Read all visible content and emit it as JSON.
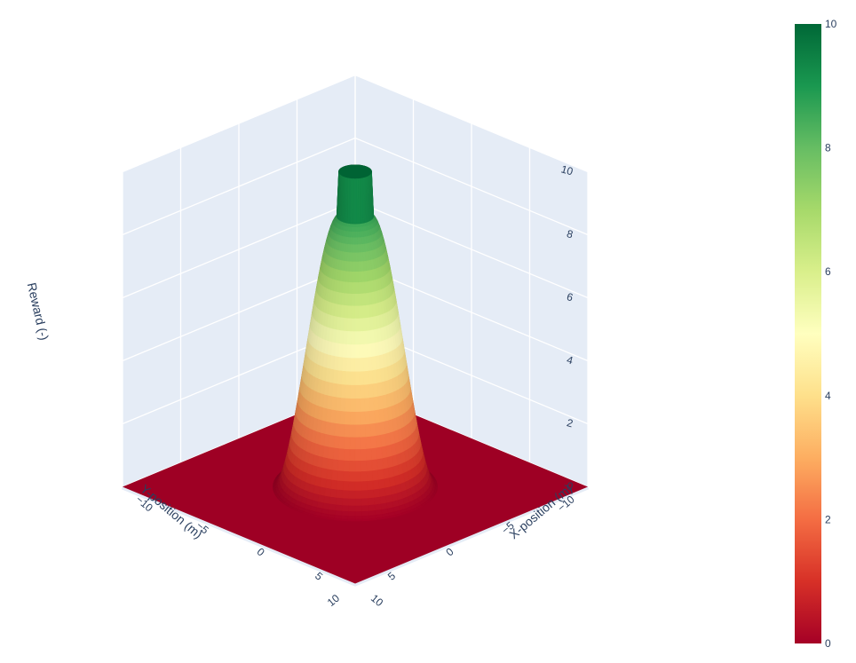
{
  "chart_data": {
    "type": "surface",
    "title": "",
    "xlabel": "X-position (m)",
    "ylabel": "Y-position (m)",
    "zlabel": "Reward (-)",
    "x_range": [
      -10,
      10
    ],
    "y_range": [
      -10,
      10
    ],
    "z_range": [
      0,
      10
    ],
    "x_ticks": [
      "−10",
      "−5",
      "0",
      "5",
      "10"
    ],
    "y_ticks": [
      "−10",
      "−5",
      "0",
      "5",
      "10"
    ],
    "z_ticks": [
      "0",
      "2",
      "4",
      "6",
      "8",
      "10"
    ],
    "surface": {
      "shape": "radial bell",
      "peak_value": 10,
      "peak_center": [
        0,
        0
      ],
      "peak_plateau_radius": 1,
      "support_radius": 5,
      "base_value": 0
    },
    "colorscale": "RdYlGn",
    "colorbar": {
      "range": [
        0,
        10
      ],
      "ticks": [
        "0",
        "2",
        "4",
        "6",
        "8",
        "10"
      ],
      "stops": [
        "#a50026",
        "#d73027",
        "#f46d43",
        "#fdae61",
        "#fee08b",
        "#ffffbf",
        "#d9ef8b",
        "#a6d96a",
        "#66bd63",
        "#1a9850",
        "#006837"
      ]
    },
    "scene_background": "#e5ecf6",
    "grid": true
  }
}
